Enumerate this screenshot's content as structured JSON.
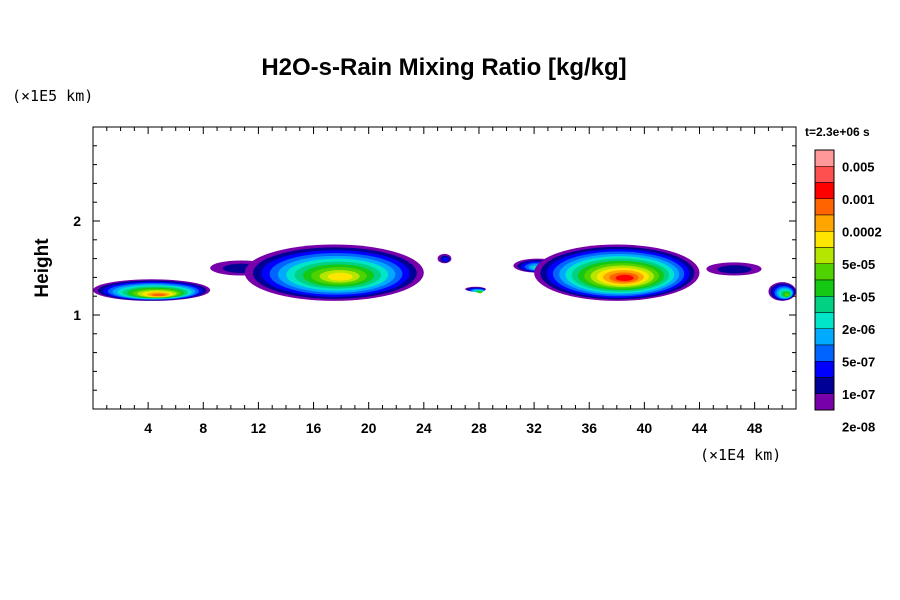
{
  "chart_data": {
    "type": "heatmap",
    "title": "H2O-s-Rain Mixing Ratio [kg/kg]",
    "xlabel": "",
    "ylabel": "Height",
    "x_unit_label": "(×1E4 km)",
    "y_unit_label": "(×1E5 km)",
    "time_label": "t=2.3e+06 s",
    "xlim": [
      0,
      51
    ],
    "ylim": [
      0,
      3
    ],
    "x_ticks": [
      4,
      8,
      12,
      16,
      20,
      24,
      28,
      32,
      36,
      40,
      44,
      48
    ],
    "x_tick_labels": [
      "4",
      "8",
      "12",
      "16",
      "20",
      "24",
      "28",
      "32",
      "36",
      "40",
      "44",
      "48"
    ],
    "y_ticks": [
      1,
      2
    ],
    "y_tick_labels": [
      "1",
      "2"
    ],
    "colorbar": {
      "labels": [
        "0.005",
        "0.001",
        "0.0002",
        "5e-05",
        "1e-05",
        "2e-06",
        "5e-07",
        "1e-07",
        "2e-08"
      ],
      "colors": [
        "#ff9999",
        "#ff5050",
        "#ff0000",
        "#ff6400",
        "#ffa500",
        "#ffe600",
        "#b4e600",
        "#50d200",
        "#14c814",
        "#00d282",
        "#00e6c8",
        "#00aaff",
        "#0064ff",
        "#0000ff",
        "#000096",
        "#7800aa"
      ]
    },
    "regions": [
      {
        "x": [
          0,
          8.5
        ],
        "y": [
          1.15,
          1.38
        ],
        "max_level": 12
      },
      {
        "x": [
          8.5,
          13
        ],
        "y": [
          1.42,
          1.58
        ],
        "max_level": 1
      },
      {
        "x": [
          11,
          24
        ],
        "y": [
          1.15,
          1.75
        ],
        "max_level": 10
      },
      {
        "x": [
          25,
          26
        ],
        "y": [
          1.55,
          1.65
        ],
        "max_level": 2
      },
      {
        "x": [
          27,
          28.5
        ],
        "y": [
          1.25,
          1.3
        ],
        "max_level": 8
      },
      {
        "x": [
          30.5,
          34
        ],
        "y": [
          1.45,
          1.6
        ],
        "max_level": 6
      },
      {
        "x": [
          32,
          44
        ],
        "y": [
          1.15,
          1.75
        ],
        "max_level": 13
      },
      {
        "x": [
          44.5,
          48.5
        ],
        "y": [
          1.42,
          1.56
        ],
        "max_level": 1
      },
      {
        "x": [
          49,
          51
        ],
        "y": [
          1.15,
          1.35
        ],
        "max_level": 8
      }
    ]
  }
}
